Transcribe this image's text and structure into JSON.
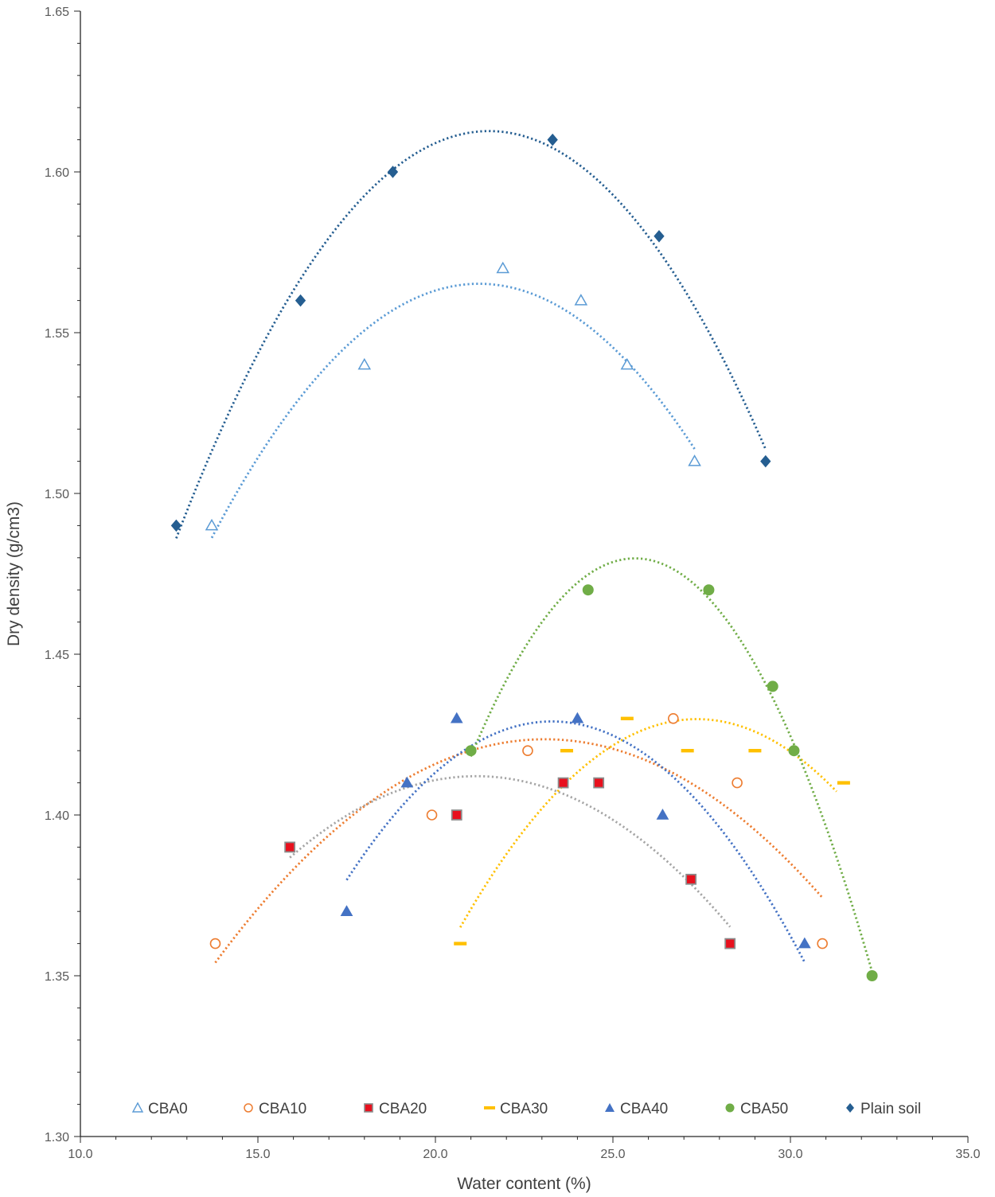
{
  "chart_data": {
    "type": "scatter",
    "title": "",
    "xlabel": "Water content (%)",
    "ylabel": "Dry density (g/cm3)",
    "xlim": [
      10.0,
      35.0
    ],
    "ylim": [
      1.3,
      1.65
    ],
    "x_ticks": [
      "10.0",
      "15.0",
      "20.0",
      "25.0",
      "30.0",
      "35.0"
    ],
    "y_ticks": [
      "1.30",
      "1.35",
      "1.40",
      "1.45",
      "1.50",
      "1.55",
      "1.60",
      "1.65"
    ],
    "x_minor_step": 1.0,
    "y_minor_step": 0.01,
    "grid": false,
    "legend_position": "bottom-inside",
    "trendline": "polynomial order 2, dotted",
    "series": [
      {
        "name": "CBA0",
        "marker": "triangle-open",
        "color": "#5B9BD5",
        "points": [
          [
            13.7,
            1.49
          ],
          [
            18.0,
            1.54
          ],
          [
            21.9,
            1.57
          ],
          [
            24.1,
            1.56
          ],
          [
            25.4,
            1.54
          ],
          [
            27.3,
            1.51
          ]
        ],
        "fit_range": [
          13.7,
          27.3
        ]
      },
      {
        "name": "CBA10",
        "marker": "circle-open",
        "color": "#ED7D31",
        "points": [
          [
            13.8,
            1.36
          ],
          [
            19.9,
            1.4
          ],
          [
            22.6,
            1.42
          ],
          [
            26.7,
            1.43
          ],
          [
            28.5,
            1.41
          ],
          [
            30.9,
            1.36
          ]
        ],
        "fit_range": [
          13.8,
          30.9
        ]
      },
      {
        "name": "CBA20",
        "marker": "square-red",
        "color": "#A5A5A5",
        "points": [
          [
            15.9,
            1.39
          ],
          [
            20.6,
            1.4
          ],
          [
            23.6,
            1.41
          ],
          [
            24.6,
            1.41
          ],
          [
            27.2,
            1.38
          ],
          [
            28.3,
            1.36
          ]
        ],
        "fit_range": [
          15.9,
          28.3
        ]
      },
      {
        "name": "CBA30",
        "marker": "dash",
        "color": "#FFC000",
        "points": [
          [
            20.7,
            1.36
          ],
          [
            23.7,
            1.42
          ],
          [
            25.4,
            1.43
          ],
          [
            27.1,
            1.42
          ],
          [
            29.0,
            1.42
          ],
          [
            31.5,
            1.41
          ]
        ],
        "fit_range": [
          20.7,
          31.3
        ]
      },
      {
        "name": "CBA40",
        "marker": "triangle-filled",
        "color": "#4472C4",
        "points": [
          [
            17.5,
            1.37
          ],
          [
            19.2,
            1.41
          ],
          [
            20.6,
            1.43
          ],
          [
            24.0,
            1.43
          ],
          [
            26.4,
            1.4
          ],
          [
            30.4,
            1.36
          ]
        ],
        "fit_range": [
          17.5,
          30.4
        ]
      },
      {
        "name": "CBA50",
        "marker": "circle-filled",
        "color": "#70AD47",
        "points": [
          [
            21.0,
            1.42
          ],
          [
            24.3,
            1.47
          ],
          [
            27.7,
            1.47
          ],
          [
            29.5,
            1.44
          ],
          [
            30.1,
            1.42
          ],
          [
            32.3,
            1.35
          ]
        ],
        "fit_range": [
          21.0,
          32.3
        ]
      },
      {
        "name": "Plain soil",
        "marker": "diamond-filled",
        "color": "#255E91",
        "points": [
          [
            12.7,
            1.49
          ],
          [
            16.2,
            1.56
          ],
          [
            18.8,
            1.6
          ],
          [
            23.3,
            1.61
          ],
          [
            26.3,
            1.58
          ],
          [
            29.3,
            1.51
          ]
        ],
        "fit_range": [
          12.7,
          29.3
        ]
      }
    ]
  }
}
